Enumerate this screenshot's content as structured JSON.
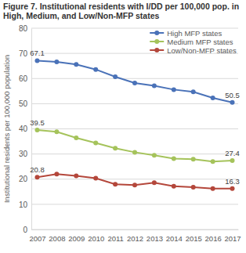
{
  "chart_data": {
    "type": "line",
    "title": "Figure 7. Institutional residents with I/DD per 100,000 pop. in High, Medium, and Low/Non-MFP states",
    "y_label": "Institutional residents per 100,000 population",
    "categories": [
      "2007",
      "2008",
      "2009",
      "2010",
      "2011",
      "2012",
      "2013",
      "2014",
      "2015",
      "2016",
      "2017"
    ],
    "series": [
      {
        "name": "High MFP states",
        "color": "#4a72b8",
        "marker": "circle",
        "values": [
          67.1,
          66.6,
          65.6,
          63.6,
          60.7,
          58.2,
          57.1,
          55.6,
          54.7,
          52.3,
          50.5
        ],
        "value_labels": [
          "67.1",
          null,
          null,
          null,
          null,
          null,
          null,
          null,
          null,
          null,
          "50.5"
        ]
      },
      {
        "name": "Medium MFP states",
        "color": "#a5c35b",
        "marker": "circle",
        "values": [
          39.5,
          38.8,
          36.4,
          34.4,
          32.3,
          30.7,
          29.5,
          28.2,
          27.9,
          27.0,
          27.4
        ],
        "value_labels": [
          "39.5",
          null,
          null,
          null,
          null,
          null,
          null,
          null,
          null,
          null,
          "27.4"
        ]
      },
      {
        "name": "Low/Non-MFP states",
        "color": "#b4473b",
        "marker": "circle",
        "values": [
          20.8,
          22.0,
          21.3,
          20.4,
          18.0,
          17.7,
          18.6,
          17.2,
          16.8,
          16.3,
          16.3
        ],
        "value_labels": [
          "20.8",
          null,
          null,
          null,
          null,
          null,
          null,
          null,
          null,
          null,
          "16.3"
        ]
      }
    ],
    "ylim": [
      0,
      80
    ],
    "yticks": [
      0,
      10,
      20,
      30,
      40,
      50,
      60,
      70,
      80
    ],
    "grid": true,
    "legend": "upper right",
    "data_labels": true
  }
}
